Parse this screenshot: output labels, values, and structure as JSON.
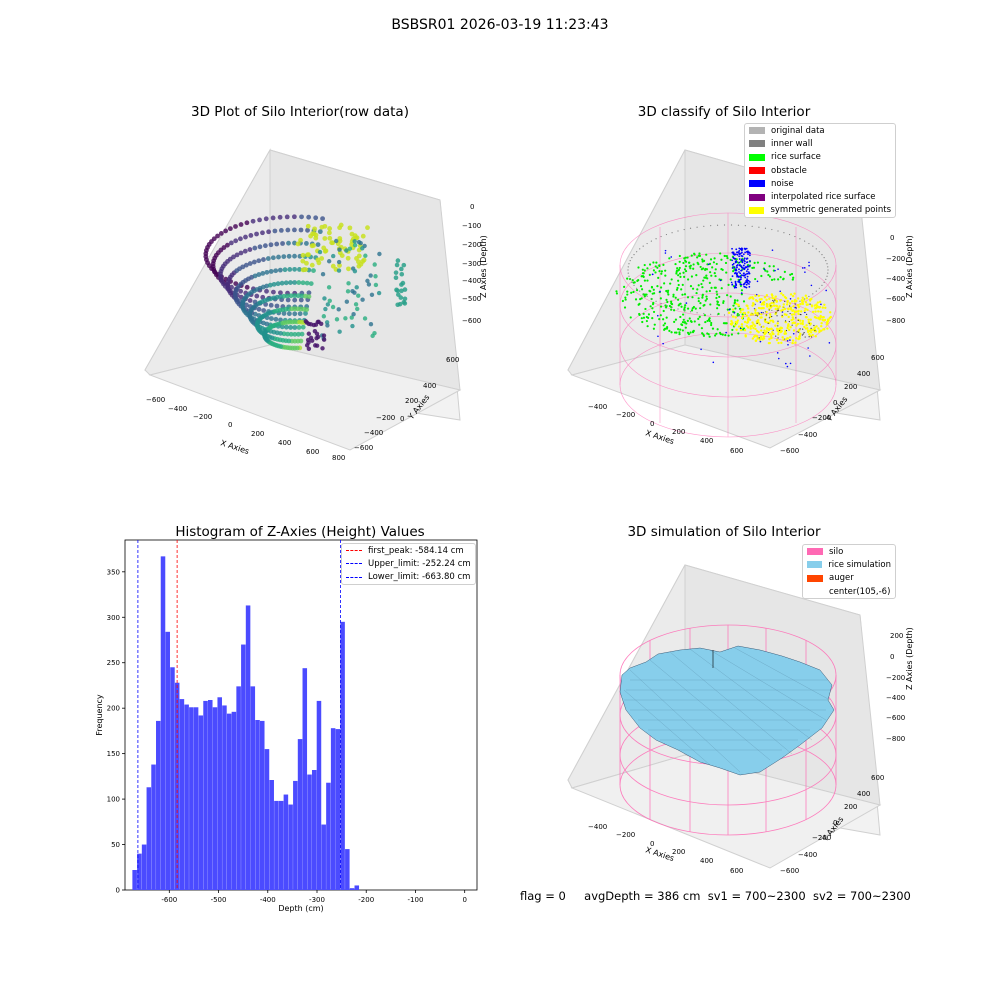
{
  "suptitle": "BSBSR01 2026-03-19 11:23:43",
  "footer": {
    "flag": "flag = 0",
    "avg_depth": "avgDepth = 386 cm",
    "sv1": "sv1 = 700~2300",
    "sv2": "sv2 = 700~2300"
  },
  "colors": {
    "original": "#b3b3b3",
    "inner_wall": "#808080",
    "rice_surface": "#00ff00",
    "obstacle": "#ff0000",
    "noise": "#0000ff",
    "interp": "#800080",
    "symmetric": "#ffff00",
    "silo": "#ff69b4",
    "rice_sim": "#87ceeb",
    "auger": "#ff4500",
    "hist_bar": "#4b4bff"
  },
  "panels": {
    "p1": {
      "title": "3D Plot of Silo Interior(row data)",
      "xlabel": "X Axies",
      "ylabel": "Y Axies",
      "zlabel": "Z Axies (Depth)",
      "xticks": [
        "−600",
        "−400",
        "−200",
        "0",
        "200",
        "400",
        "600",
        "800"
      ],
      "yticks": [
        "600",
        "400",
        "200",
        "0",
        "−200",
        "−400",
        "−600"
      ],
      "zticks": [
        "0",
        "−100",
        "−200",
        "−300",
        "−400",
        "−500",
        "−600"
      ]
    },
    "p2": {
      "title": "3D classify of Silo Interior",
      "xlabel": "X Axies",
      "ylabel": "Y Axies",
      "zlabel": "Z Axies (Depth)",
      "xticks": [
        "−400",
        "−200",
        "0",
        "200",
        "400",
        "600"
      ],
      "yticks": [
        "600",
        "400",
        "200",
        "0",
        "−200",
        "−400",
        "−600"
      ],
      "zticks": [
        "0",
        "−200",
        "−400",
        "−600",
        "−800"
      ],
      "legend": [
        "original data",
        "inner wall",
        "rice surface",
        "obstacle",
        "noise",
        "interpolated rice surface",
        "symmetric generated points"
      ]
    },
    "p3": {
      "title": "Histogram of Z-Axies (Height) Values",
      "xlabel": "Depth (cm)",
      "ylabel": "Frequency",
      "legend": [
        "first_peak: -584.14 cm",
        "Upper_limit: -252.24 cm",
        "Lower_limit: -663.80 cm"
      ]
    },
    "p4": {
      "title": "3D simulation of Silo Interior",
      "xlabel": "X Axies",
      "ylabel": "Y Axies",
      "zlabel": "Z Axies (Depth)",
      "xticks": [
        "−400",
        "−200",
        "0",
        "200",
        "400",
        "600"
      ],
      "yticks": [
        "600",
        "400",
        "200",
        "0",
        "−200",
        "−400",
        "−600"
      ],
      "zticks": [
        "200",
        "0",
        "−200",
        "−400",
        "−600",
        "−800"
      ],
      "legend": [
        "silo",
        "rice simulation",
        "auger",
        "center(105,-6)"
      ]
    }
  },
  "chart_data": [
    {
      "type": "bar",
      "title": "Histogram of Z-Axies (Height) Values",
      "xlabel": "Depth (cm)",
      "ylabel": "Frequency",
      "bin_start": -675,
      "bin_width": 9.6,
      "values": [
        22,
        40,
        50,
        113,
        138,
        186,
        367,
        284,
        245,
        228,
        210,
        204,
        201,
        201,
        192,
        208,
        209,
        201,
        212,
        203,
        194,
        196,
        224,
        270,
        313,
        224,
        187,
        186,
        155,
        121,
        98,
        98,
        105,
        94,
        120,
        166,
        244,
        127,
        132,
        208,
        72,
        118,
        178,
        177,
        295,
        45,
        2,
        5
      ],
      "xlim": [
        -690,
        25
      ],
      "ylim": [
        0,
        385
      ],
      "xticks": [
        -600,
        -500,
        -400,
        -300,
        -200,
        -100,
        0
      ],
      "yticks": [
        0,
        50,
        100,
        150,
        200,
        250,
        300,
        350
      ],
      "vlines": [
        {
          "label": "first_peak: -584.14 cm",
          "x": -584.14,
          "color": "#ff0000"
        },
        {
          "label": "Upper_limit: -252.24 cm",
          "x": -252.24,
          "color": "#0000ff"
        },
        {
          "label": "Lower_limit: -663.80 cm",
          "x": -663.8,
          "color": "#0000ff"
        }
      ],
      "legend_position": "upper right",
      "grid": false
    },
    {
      "type": "scatter",
      "title": "3D Plot of Silo Interior(row data)",
      "axes": [
        "X Axies",
        "Y Axies",
        "Z Axies (Depth)"
      ],
      "xlim": [
        -600,
        800
      ],
      "ylim": [
        -600,
        600
      ],
      "zlim": [
        -600,
        0
      ]
    },
    {
      "type": "scatter",
      "title": "3D classify of Silo Interior",
      "axes": [
        "X Axies",
        "Y Axies",
        "Z Axies (Depth)"
      ],
      "series": [
        {
          "name": "original data"
        },
        {
          "name": "inner wall"
        },
        {
          "name": "rice surface"
        },
        {
          "name": "obstacle"
        },
        {
          "name": "noise"
        },
        {
          "name": "interpolated rice surface"
        },
        {
          "name": "symmetric generated points"
        }
      ]
    },
    {
      "type": "area",
      "title": "3D simulation of Silo Interior",
      "axes": [
        "X Axies",
        "Y Axies",
        "Z Axies (Depth)"
      ],
      "series": [
        {
          "name": "silo"
        },
        {
          "name": "rice simulation"
        },
        {
          "name": "auger"
        },
        {
          "name": "center(105,-6)"
        }
      ]
    }
  ]
}
